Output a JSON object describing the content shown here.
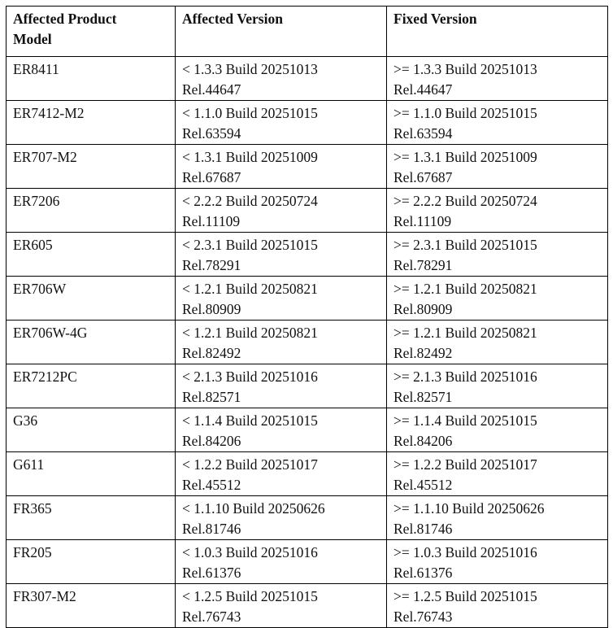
{
  "table": {
    "header": [
      "Affected Product Model",
      "Affected Version",
      "Fixed Version"
    ],
    "rows": [
      [
        "ER8411",
        [
          "< 1.3.3 Build 20251013",
          "Rel.44647"
        ],
        [
          ">= 1.3.3 Build 20251013",
          "Rel.44647"
        ]
      ],
      [
        "ER7412-M2",
        [
          "< 1.1.0 Build 20251015",
          "Rel.63594"
        ],
        [
          ">= 1.1.0 Build 20251015",
          "Rel.63594"
        ]
      ],
      [
        "ER707-M2",
        [
          "< 1.3.1 Build 20251009",
          "Rel.67687"
        ],
        [
          ">= 1.3.1 Build 20251009",
          "Rel.67687"
        ]
      ],
      [
        "ER7206",
        [
          "< 2.2.2 Build 20250724",
          "Rel.11109"
        ],
        [
          ">= 2.2.2 Build 20250724",
          "Rel.11109"
        ]
      ],
      [
        "ER605",
        [
          "< 2.3.1 Build 20251015",
          "Rel.78291"
        ],
        [
          ">= 2.3.1 Build 20251015",
          "Rel.78291"
        ]
      ],
      [
        "ER706W",
        [
          "< 1.2.1 Build 20250821",
          "Rel.80909"
        ],
        [
          ">= 1.2.1 Build 20250821",
          "Rel.80909"
        ]
      ],
      [
        "ER706W-4G",
        [
          "< 1.2.1 Build 20250821",
          "Rel.82492"
        ],
        [
          ">= 1.2.1 Build 20250821",
          "Rel.82492"
        ]
      ],
      [
        "ER7212PC",
        [
          "< 2.1.3 Build 20251016",
          "Rel.82571"
        ],
        [
          ">= 2.1.3 Build 20251016",
          "Rel.82571"
        ]
      ],
      [
        "G36",
        [
          "< 1.1.4 Build 20251015",
          "Rel.84206"
        ],
        [
          ">= 1.1.4 Build 20251015",
          "Rel.84206"
        ]
      ],
      [
        "G611",
        [
          "< 1.2.2 Build 20251017",
          "Rel.45512"
        ],
        [
          ">= 1.2.2 Build 20251017",
          "Rel.45512"
        ]
      ],
      [
        "FR365",
        [
          "< 1.1.10 Build 20250626",
          "Rel.81746"
        ],
        [
          ">= 1.1.10 Build 20250626",
          "Rel.81746"
        ]
      ],
      [
        "FR205",
        [
          "< 1.0.3 Build 20251016",
          "Rel.61376"
        ],
        [
          ">= 1.0.3 Build 20251016",
          "Rel.61376"
        ]
      ],
      [
        "FR307-M2",
        [
          "< 1.2.5 Build 20251015",
          "Rel.76743"
        ],
        [
          ">= 1.2.5 Build 20251015",
          "Rel.76743"
        ]
      ]
    ]
  }
}
